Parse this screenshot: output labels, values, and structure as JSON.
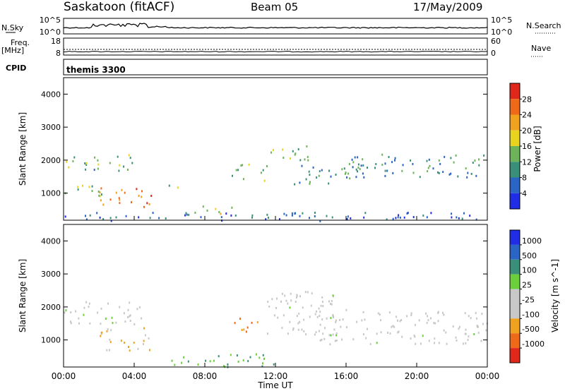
{
  "header": {
    "station": "Saskatoon (fitACF)",
    "beam": "Beam 05",
    "date": "17/May/2009"
  },
  "top_panels": {
    "nsky_label": "N.Sky",
    "nsearch_label": "N.Search",
    "nsky_ticks": [
      "10^5",
      "10^0"
    ],
    "nsearch_ticks": [
      "10^5",
      "10^0"
    ],
    "freq_label": "Freq.",
    "freq_unit": "[MHz]",
    "freq_ticks": [
      "18",
      "8"
    ],
    "nave_label": "Nave",
    "nave_ticks": [
      "60",
      "0"
    ],
    "cpid_label": "CPID",
    "cpid_value": "themis 3300"
  },
  "colors": {
    "power": [
      "#1f2ee6",
      "#2a64c4",
      "#3a8f78",
      "#6db35a",
      "#e8d41e",
      "#f0a21e",
      "#ee6a1a",
      "#e0281a"
    ],
    "velocity": [
      "#e0281a",
      "#ee6a1a",
      "#f0a21e",
      "#c8c8c8",
      "#c8c8c8",
      "#6bcf3c",
      "#3a8f78",
      "#2a64c4",
      "#1f2ee6"
    ]
  },
  "chart_data": [
    {
      "type": "heatmap",
      "name": "power",
      "xlabel": "",
      "ylabel": "Slant Range [km]",
      "xlim": [
        0,
        24
      ],
      "ylim": [
        180,
        4500
      ],
      "yticks": [
        1000,
        2000,
        3000,
        4000
      ],
      "colorbar_label": "Power [dB]",
      "colorbar_ticks": [
        "4",
        "8",
        "12",
        "16",
        "20",
        "24",
        "28"
      ],
      "clim": [
        0,
        30
      ],
      "regions": [
        {
          "t": [
            0.0,
            4.0
          ],
          "r": [
            1700,
            2200
          ],
          "v": 12
        },
        {
          "t": [
            2.0,
            5.0
          ],
          "r": [
            600,
            1200
          ],
          "v": 24
        },
        {
          "t": [
            0.0,
            2.5
          ],
          "r": [
            900,
            1300
          ],
          "v": 14
        },
        {
          "t": [
            5.8,
            6.5
          ],
          "r": [
            1000,
            1300
          ],
          "v": 12
        },
        {
          "t": [
            7.0,
            9.5
          ],
          "r": [
            400,
            650
          ],
          "v": 16
        },
        {
          "t": [
            9.5,
            11.5
          ],
          "r": [
            1400,
            1900
          ],
          "v": 11
        },
        {
          "t": [
            11.5,
            14.0
          ],
          "r": [
            2000,
            2500
          ],
          "v": 12
        },
        {
          "t": [
            13.0,
            17.0
          ],
          "r": [
            1300,
            1900
          ],
          "v": 10
        },
        {
          "t": [
            16.0,
            24.0
          ],
          "r": [
            1500,
            2200
          ],
          "v": 9
        },
        {
          "t": [
            0.0,
            24.0
          ],
          "r": [
            180,
            450
          ],
          "v": 6
        }
      ]
    },
    {
      "type": "heatmap",
      "name": "velocity",
      "xlabel": "Time UT",
      "ylabel": "Slant Range [km]",
      "xlim": [
        0,
        24
      ],
      "ylim": [
        180,
        4500
      ],
      "xticks": [
        "00:00",
        "04:00",
        "08:00",
        "12:00",
        "16:00",
        "20:00",
        "00:00"
      ],
      "yticks": [
        1000,
        2000,
        3000,
        4000
      ],
      "colorbar_label": "Velocity [m s^-1]",
      "colorbar_ticks": [
        "1000",
        "500",
        "100",
        "25",
        "-25",
        "-100",
        "-500",
        "-1000"
      ],
      "regions": [
        {
          "t": [
            0.0,
            4.5
          ],
          "r": [
            1500,
            2200
          ],
          "v": 0
        },
        {
          "t": [
            2.0,
            5.0
          ],
          "r": [
            700,
            1400
          ],
          "v": -100
        },
        {
          "t": [
            9.5,
            11.0
          ],
          "r": [
            1200,
            1700
          ],
          "v": -500
        },
        {
          "t": [
            11.5,
            16.0
          ],
          "r": [
            1200,
            2500
          ],
          "v": 0
        },
        {
          "t": [
            14.0,
            24.0
          ],
          "r": [
            900,
            1900
          ],
          "v": 0
        },
        {
          "t": [
            6.0,
            12.0
          ],
          "r": [
            200,
            600
          ],
          "v": 100
        }
      ]
    }
  ]
}
